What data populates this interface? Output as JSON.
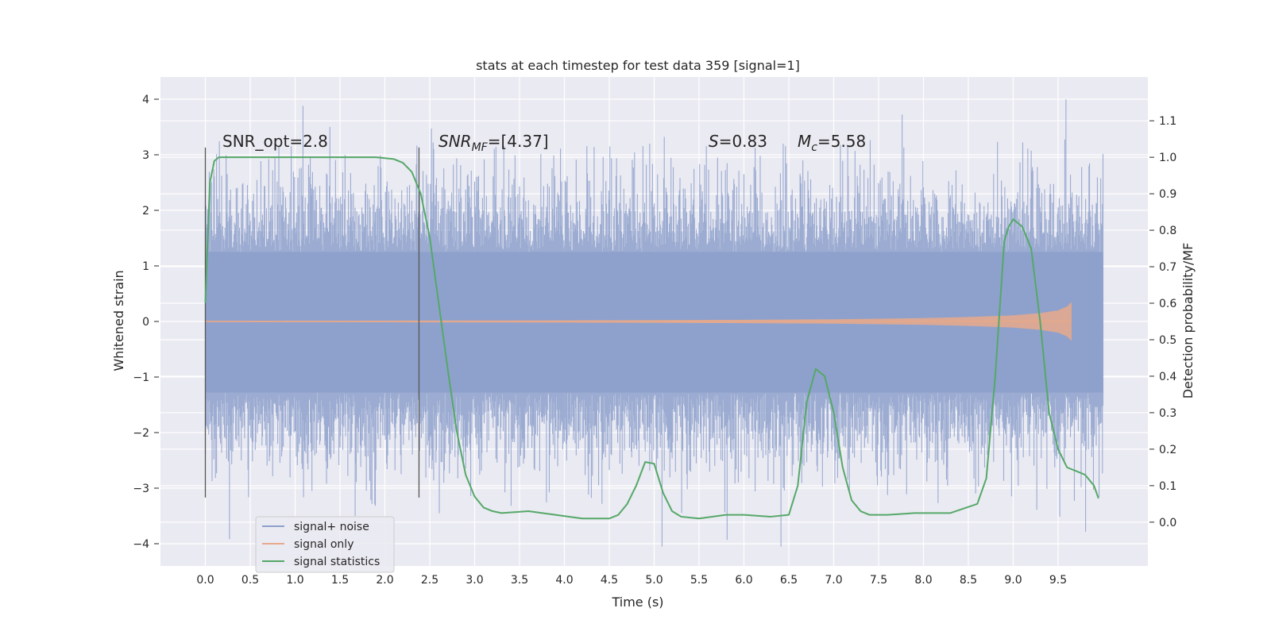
{
  "chart_data": {
    "type": "line",
    "title": "stats at each timestep for test data 359 [signal=1]",
    "xlabel": "Time (s)",
    "ylabel": "Whitened strain",
    "y2label": "Detection probability/MF",
    "xlim": [
      -0.5,
      10.5
    ],
    "ylim": [
      -4.4,
      4.4
    ],
    "y2lim": [
      -0.12,
      1.22
    ],
    "x_ticks": [
      "0.0",
      "0.5",
      "1.0",
      "1.5",
      "2.0",
      "2.5",
      "3.0",
      "3.5",
      "4.0",
      "4.5",
      "5.0",
      "5.5",
      "6.0",
      "6.5",
      "7.0",
      "7.5",
      "8.0",
      "8.5",
      "9.0",
      "9.5"
    ],
    "y_ticks": [
      "4",
      "3",
      "2",
      "1",
      "0",
      "−1",
      "−2",
      "−3",
      "−4"
    ],
    "y2_ticks": [
      "0.0",
      "0.1",
      "0.2",
      "0.3",
      "0.4",
      "0.5",
      "0.6",
      "0.7",
      "0.8",
      "0.9",
      "1.0",
      "1.1"
    ],
    "grid": true,
    "legend_position": "lower-left",
    "annotations": {
      "snr_opt": "SNR_opt=2.8",
      "snr_mf_prefix": "SNR",
      "snr_mf_sub": "MF",
      "snr_mf_value": "=[4.37]",
      "s_sym": "S",
      "s_value": "=0.83",
      "mc_sym": "M",
      "mc_sub": "c",
      "mc_value": "=5.58"
    },
    "vlines": [
      {
        "x": 0.0,
        "ymin": -3.17,
        "ymax": 3.13
      },
      {
        "x": 2.38,
        "ymin": -3.17,
        "ymax": 3.13
      }
    ],
    "noise_envelope": {
      "x": [
        0.0,
        10.0
      ],
      "core_upper": 1.25,
      "core_lower": -1.28,
      "spike_max": 4.0,
      "spike_min": -4.05
    },
    "signal_only": {
      "x": [
        0.0,
        2.0,
        4.0,
        6.0,
        7.0,
        8.0,
        8.5,
        9.0,
        9.3,
        9.5,
        9.6,
        9.65
      ],
      "amplitude": [
        0.01,
        0.015,
        0.02,
        0.03,
        0.04,
        0.06,
        0.08,
        0.11,
        0.15,
        0.2,
        0.27,
        0.35
      ]
    },
    "series": [
      {
        "name": "signal+ noise",
        "color": "#8da0cb"
      },
      {
        "name": "signal only",
        "color": "#e8a98a"
      },
      {
        "name": "signal statistics",
        "color": "#55a868",
        "x": [
          0.0,
          0.05,
          0.1,
          0.15,
          0.2,
          0.4,
          0.8,
          1.2,
          1.6,
          1.9,
          2.1,
          2.2,
          2.3,
          2.4,
          2.5,
          2.6,
          2.7,
          2.8,
          2.9,
          3.0,
          3.1,
          3.2,
          3.3,
          3.6,
          3.9,
          4.2,
          4.5,
          4.6,
          4.7,
          4.8,
          4.9,
          5.0,
          5.1,
          5.2,
          5.3,
          5.5,
          5.8,
          6.0,
          6.3,
          6.5,
          6.6,
          6.7,
          6.8,
          6.9,
          7.0,
          7.1,
          7.2,
          7.3,
          7.4,
          7.6,
          7.9,
          8.3,
          8.6,
          8.7,
          8.8,
          8.9,
          8.95,
          9.0,
          9.05,
          9.1,
          9.2,
          9.3,
          9.4,
          9.5,
          9.6,
          9.7,
          9.8,
          9.9,
          9.95
        ],
        "values": [
          0.6,
          0.93,
          0.99,
          1.0,
          1.0,
          1.0,
          1.0,
          1.0,
          1.0,
          1.0,
          0.995,
          0.985,
          0.96,
          0.9,
          0.78,
          0.6,
          0.42,
          0.25,
          0.13,
          0.07,
          0.04,
          0.03,
          0.025,
          0.03,
          0.02,
          0.01,
          0.01,
          0.02,
          0.05,
          0.1,
          0.165,
          0.16,
          0.08,
          0.03,
          0.015,
          0.01,
          0.02,
          0.02,
          0.015,
          0.02,
          0.1,
          0.33,
          0.42,
          0.4,
          0.3,
          0.15,
          0.06,
          0.03,
          0.02,
          0.02,
          0.025,
          0.025,
          0.05,
          0.12,
          0.4,
          0.77,
          0.81,
          0.83,
          0.82,
          0.81,
          0.75,
          0.55,
          0.3,
          0.2,
          0.15,
          0.14,
          0.13,
          0.1,
          0.065
        ]
      }
    ]
  }
}
